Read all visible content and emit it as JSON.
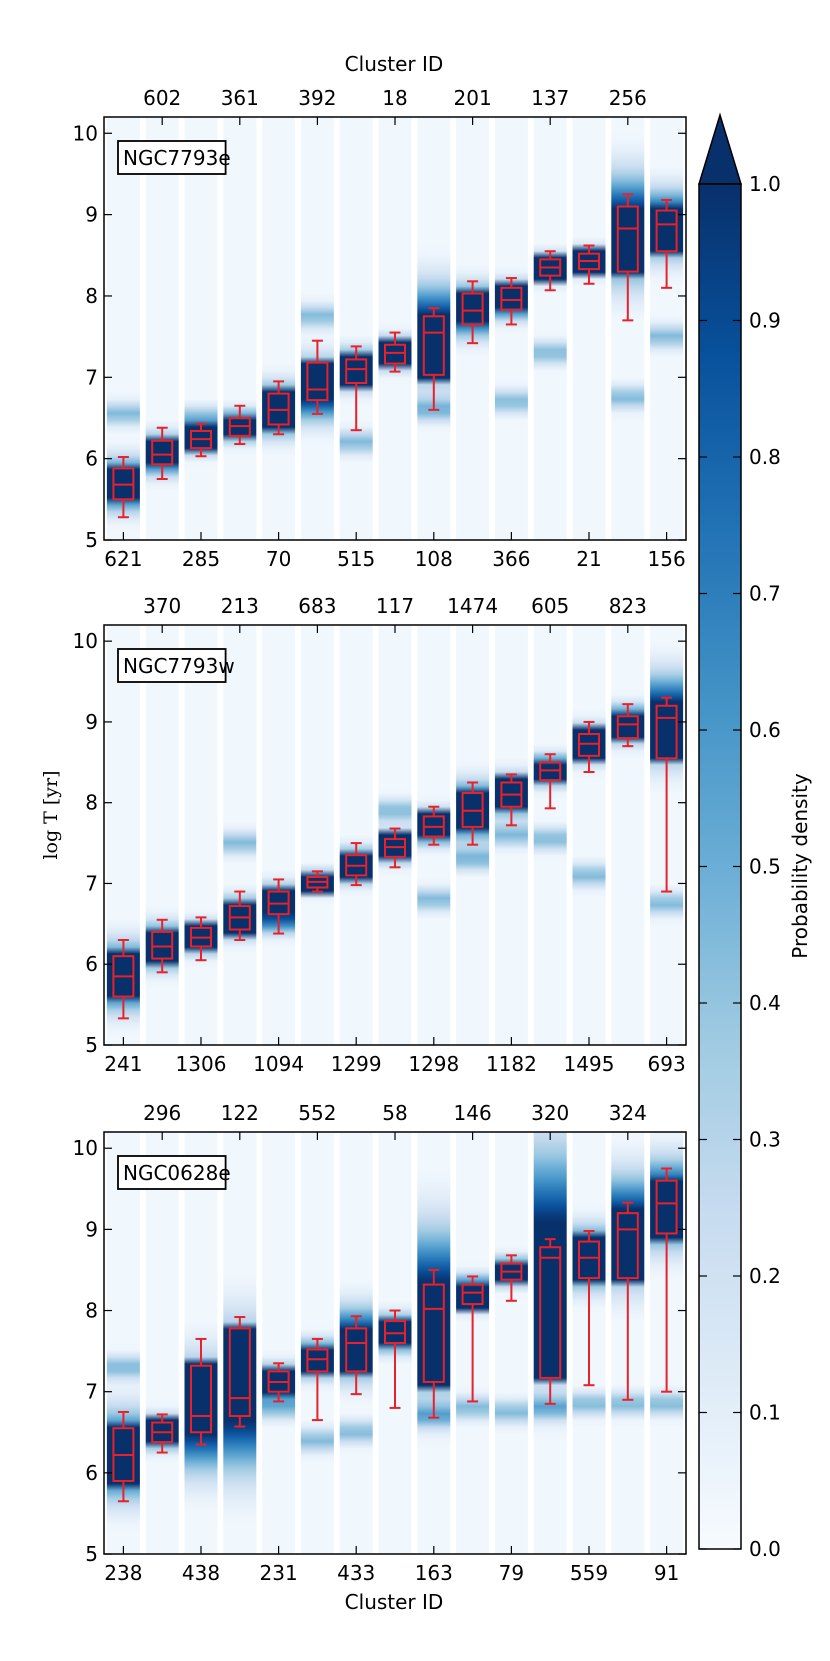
{
  "chart_data": {
    "type": "boxplot-heatmap",
    "top_axis_title": "Cluster ID",
    "bottom_axis_title": "Cluster ID",
    "ylabel": "log T [yr]",
    "ylim": [
      5,
      10.2
    ],
    "yticks": [
      "5",
      "6",
      "7",
      "8",
      "9",
      "10"
    ],
    "colorbar": {
      "label": "Probability density",
      "range": [
        0.0,
        1.0
      ],
      "ticks": [
        "0.0",
        "0.1",
        "0.2",
        "0.3",
        "0.4",
        "0.5",
        "0.6",
        "0.7",
        "0.8",
        "0.9",
        "1.0"
      ],
      "extend": "max"
    },
    "colors": {
      "box": "#e8212a",
      "cmap_low": "#f7fbff",
      "cmap_high": "#08306b"
    },
    "panels": [
      {
        "galaxy": "NGC7793e",
        "bottom_ids": [
          "621",
          "285",
          "70",
          "515",
          "108",
          "366",
          "21",
          "156"
        ],
        "top_ids": [
          "602",
          "361",
          "392",
          "18",
          "201",
          "137",
          "256"
        ],
        "boxes": [
          {
            "q1": 5.5,
            "med": 5.68,
            "q3": 5.88,
            "lo": 5.28,
            "hi": 6.02
          },
          {
            "q1": 5.93,
            "med": 6.05,
            "q3": 6.22,
            "lo": 5.75,
            "hi": 6.38
          },
          {
            "q1": 6.13,
            "med": 6.24,
            "q3": 6.34,
            "lo": 6.03,
            "hi": 6.43
          },
          {
            "q1": 6.28,
            "med": 6.4,
            "q3": 6.5,
            "lo": 6.18,
            "hi": 6.65
          },
          {
            "q1": 6.42,
            "med": 6.6,
            "q3": 6.8,
            "lo": 6.3,
            "hi": 6.95
          },
          {
            "q1": 6.72,
            "med": 6.85,
            "q3": 7.18,
            "lo": 6.55,
            "hi": 7.45
          },
          {
            "q1": 6.93,
            "med": 7.1,
            "q3": 7.22,
            "lo": 6.35,
            "hi": 7.38
          },
          {
            "q1": 7.17,
            "med": 7.3,
            "q3": 7.4,
            "lo": 7.07,
            "hi": 7.55
          },
          {
            "q1": 7.03,
            "med": 7.55,
            "q3": 7.75,
            "lo": 6.6,
            "hi": 7.85
          },
          {
            "q1": 7.65,
            "med": 7.82,
            "q3": 8.03,
            "lo": 7.42,
            "hi": 8.18
          },
          {
            "q1": 7.83,
            "med": 7.95,
            "q3": 8.1,
            "lo": 7.65,
            "hi": 8.22
          },
          {
            "q1": 8.25,
            "med": 8.35,
            "q3": 8.45,
            "lo": 8.07,
            "hi": 8.55
          },
          {
            "q1": 8.33,
            "med": 8.43,
            "q3": 8.52,
            "lo": 8.15,
            "hi": 8.62
          },
          {
            "q1": 8.3,
            "med": 8.83,
            "q3": 9.1,
            "lo": 7.7,
            "hi": 9.25
          },
          {
            "q1": 8.55,
            "med": 8.88,
            "q3": 9.05,
            "lo": 8.1,
            "hi": 9.18
          }
        ],
        "secondary_density": [
          6.55,
          null,
          6.5,
          null,
          null,
          7.75,
          6.2,
          null,
          6.6,
          null,
          6.7,
          7.3,
          null,
          6.75,
          7.5
        ]
      },
      {
        "galaxy": "NGC7793w",
        "bottom_ids": [
          "241",
          "1306",
          "1094",
          "1299",
          "1298",
          "1182",
          "1495",
          "693"
        ],
        "top_ids": [
          "370",
          "213",
          "683",
          "117",
          "1474",
          "605",
          "823"
        ],
        "boxes": [
          {
            "q1": 5.6,
            "med": 5.85,
            "q3": 6.1,
            "lo": 5.33,
            "hi": 6.3
          },
          {
            "q1": 6.07,
            "med": 6.22,
            "q3": 6.4,
            "lo": 5.9,
            "hi": 6.55
          },
          {
            "q1": 6.22,
            "med": 6.33,
            "q3": 6.45,
            "lo": 6.05,
            "hi": 6.58
          },
          {
            "q1": 6.43,
            "med": 6.58,
            "q3": 6.72,
            "lo": 6.3,
            "hi": 6.9
          },
          {
            "q1": 6.62,
            "med": 6.75,
            "q3": 6.9,
            "lo": 6.38,
            "hi": 7.05
          },
          {
            "q1": 6.95,
            "med": 7.02,
            "q3": 7.08,
            "lo": 6.9,
            "hi": 7.15
          },
          {
            "q1": 7.1,
            "med": 7.22,
            "q3": 7.35,
            "lo": 6.98,
            "hi": 7.5
          },
          {
            "q1": 7.33,
            "med": 7.45,
            "q3": 7.55,
            "lo": 7.2,
            "hi": 7.68
          },
          {
            "q1": 7.58,
            "med": 7.7,
            "q3": 7.83,
            "lo": 7.48,
            "hi": 7.95
          },
          {
            "q1": 7.7,
            "med": 7.9,
            "q3": 8.12,
            "lo": 7.48,
            "hi": 8.25
          },
          {
            "q1": 7.95,
            "med": 8.1,
            "q3": 8.25,
            "lo": 7.72,
            "hi": 8.35
          },
          {
            "q1": 8.28,
            "med": 8.4,
            "q3": 8.5,
            "lo": 7.93,
            "hi": 8.6
          },
          {
            "q1": 8.58,
            "med": 8.73,
            "q3": 8.85,
            "lo": 8.38,
            "hi": 9.0
          },
          {
            "q1": 8.8,
            "med": 8.97,
            "q3": 9.07,
            "lo": 8.7,
            "hi": 9.22
          },
          {
            "q1": 8.55,
            "med": 9.05,
            "q3": 9.2,
            "lo": 6.9,
            "hi": 9.3
          }
        ],
        "secondary_density": [
          null,
          null,
          null,
          7.5,
          6.5,
          null,
          null,
          7.9,
          6.8,
          7.3,
          7.6,
          7.55,
          7.1,
          null,
          6.75
        ]
      },
      {
        "galaxy": "NGC0628e",
        "bottom_ids": [
          "238",
          "438",
          "231",
          "433",
          "163",
          "79",
          "559",
          "91"
        ],
        "top_ids": [
          "296",
          "122",
          "552",
          "58",
          "146",
          "320",
          "324"
        ],
        "boxes": [
          {
            "q1": 5.9,
            "med": 6.22,
            "q3": 6.55,
            "lo": 5.65,
            "hi": 6.75
          },
          {
            "q1": 6.38,
            "med": 6.5,
            "q3": 6.62,
            "lo": 6.25,
            "hi": 6.72
          },
          {
            "q1": 6.5,
            "med": 6.7,
            "q3": 7.32,
            "lo": 6.35,
            "hi": 7.65
          },
          {
            "q1": 6.7,
            "med": 6.92,
            "q3": 7.78,
            "lo": 6.57,
            "hi": 7.92
          },
          {
            "q1": 7.0,
            "med": 7.12,
            "q3": 7.25,
            "lo": 6.88,
            "hi": 7.35
          },
          {
            "q1": 7.25,
            "med": 7.4,
            "q3": 7.52,
            "lo": 6.65,
            "hi": 7.65
          },
          {
            "q1": 7.25,
            "med": 7.6,
            "q3": 7.78,
            "lo": 6.97,
            "hi": 7.93
          },
          {
            "q1": 7.6,
            "med": 7.72,
            "q3": 7.87,
            "lo": 6.8,
            "hi": 8.0
          },
          {
            "q1": 7.12,
            "med": 8.02,
            "q3": 8.32,
            "lo": 6.68,
            "hi": 8.5
          },
          {
            "q1": 8.08,
            "med": 8.22,
            "q3": 8.32,
            "lo": 6.88,
            "hi": 8.42
          },
          {
            "q1": 8.38,
            "med": 8.48,
            "q3": 8.58,
            "lo": 8.12,
            "hi": 8.68
          },
          {
            "q1": 7.17,
            "med": 8.65,
            "q3": 8.78,
            "lo": 6.85,
            "hi": 8.88
          },
          {
            "q1": 8.4,
            "med": 8.65,
            "q3": 8.85,
            "lo": 7.08,
            "hi": 8.98
          },
          {
            "q1": 8.4,
            "med": 9.0,
            "q3": 9.2,
            "lo": 6.9,
            "hi": 9.33
          },
          {
            "q1": 8.95,
            "med": 9.32,
            "q3": 9.6,
            "lo": 7.0,
            "hi": 9.75
          }
        ],
        "secondary_density": [
          7.3,
          null,
          null,
          null,
          6.8,
          6.4,
          6.5,
          null,
          6.7,
          6.8,
          6.75,
          6.8,
          6.85,
          6.85,
          6.85
        ]
      }
    ]
  }
}
